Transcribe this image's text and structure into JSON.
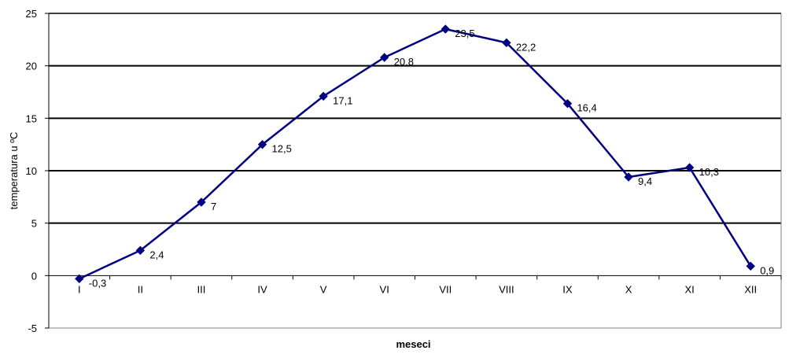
{
  "chart_data": {
    "type": "line",
    "categories": [
      "I",
      "II",
      "III",
      "IV",
      "V",
      "VI",
      "VII",
      "VIII",
      "IX",
      "X",
      "XI",
      "XII"
    ],
    "series": [
      {
        "values": [
          -0.3,
          2.4,
          7,
          12.5,
          17.1,
          20.8,
          23.5,
          22.2,
          16.4,
          9.4,
          10.3,
          0.9
        ],
        "labels": [
          "-0,3",
          "2,4",
          "7",
          "12,5",
          "17,1",
          "20,8",
          "23,5",
          "22,2",
          "16,4",
          "9,4",
          "10,3",
          "0,9"
        ],
        "color": "#000080"
      }
    ],
    "xlabel": "meseci",
    "ylabel": "temperatura u ºC",
    "ylim": [
      -5,
      25
    ],
    "yticks": [
      -5,
      0,
      5,
      10,
      15,
      20,
      25
    ],
    "ytick_labels": [
      "-5",
      "0",
      "5",
      "10",
      "15",
      "20",
      "25"
    ],
    "grid": true,
    "legend": "none",
    "marker": "diamond"
  }
}
